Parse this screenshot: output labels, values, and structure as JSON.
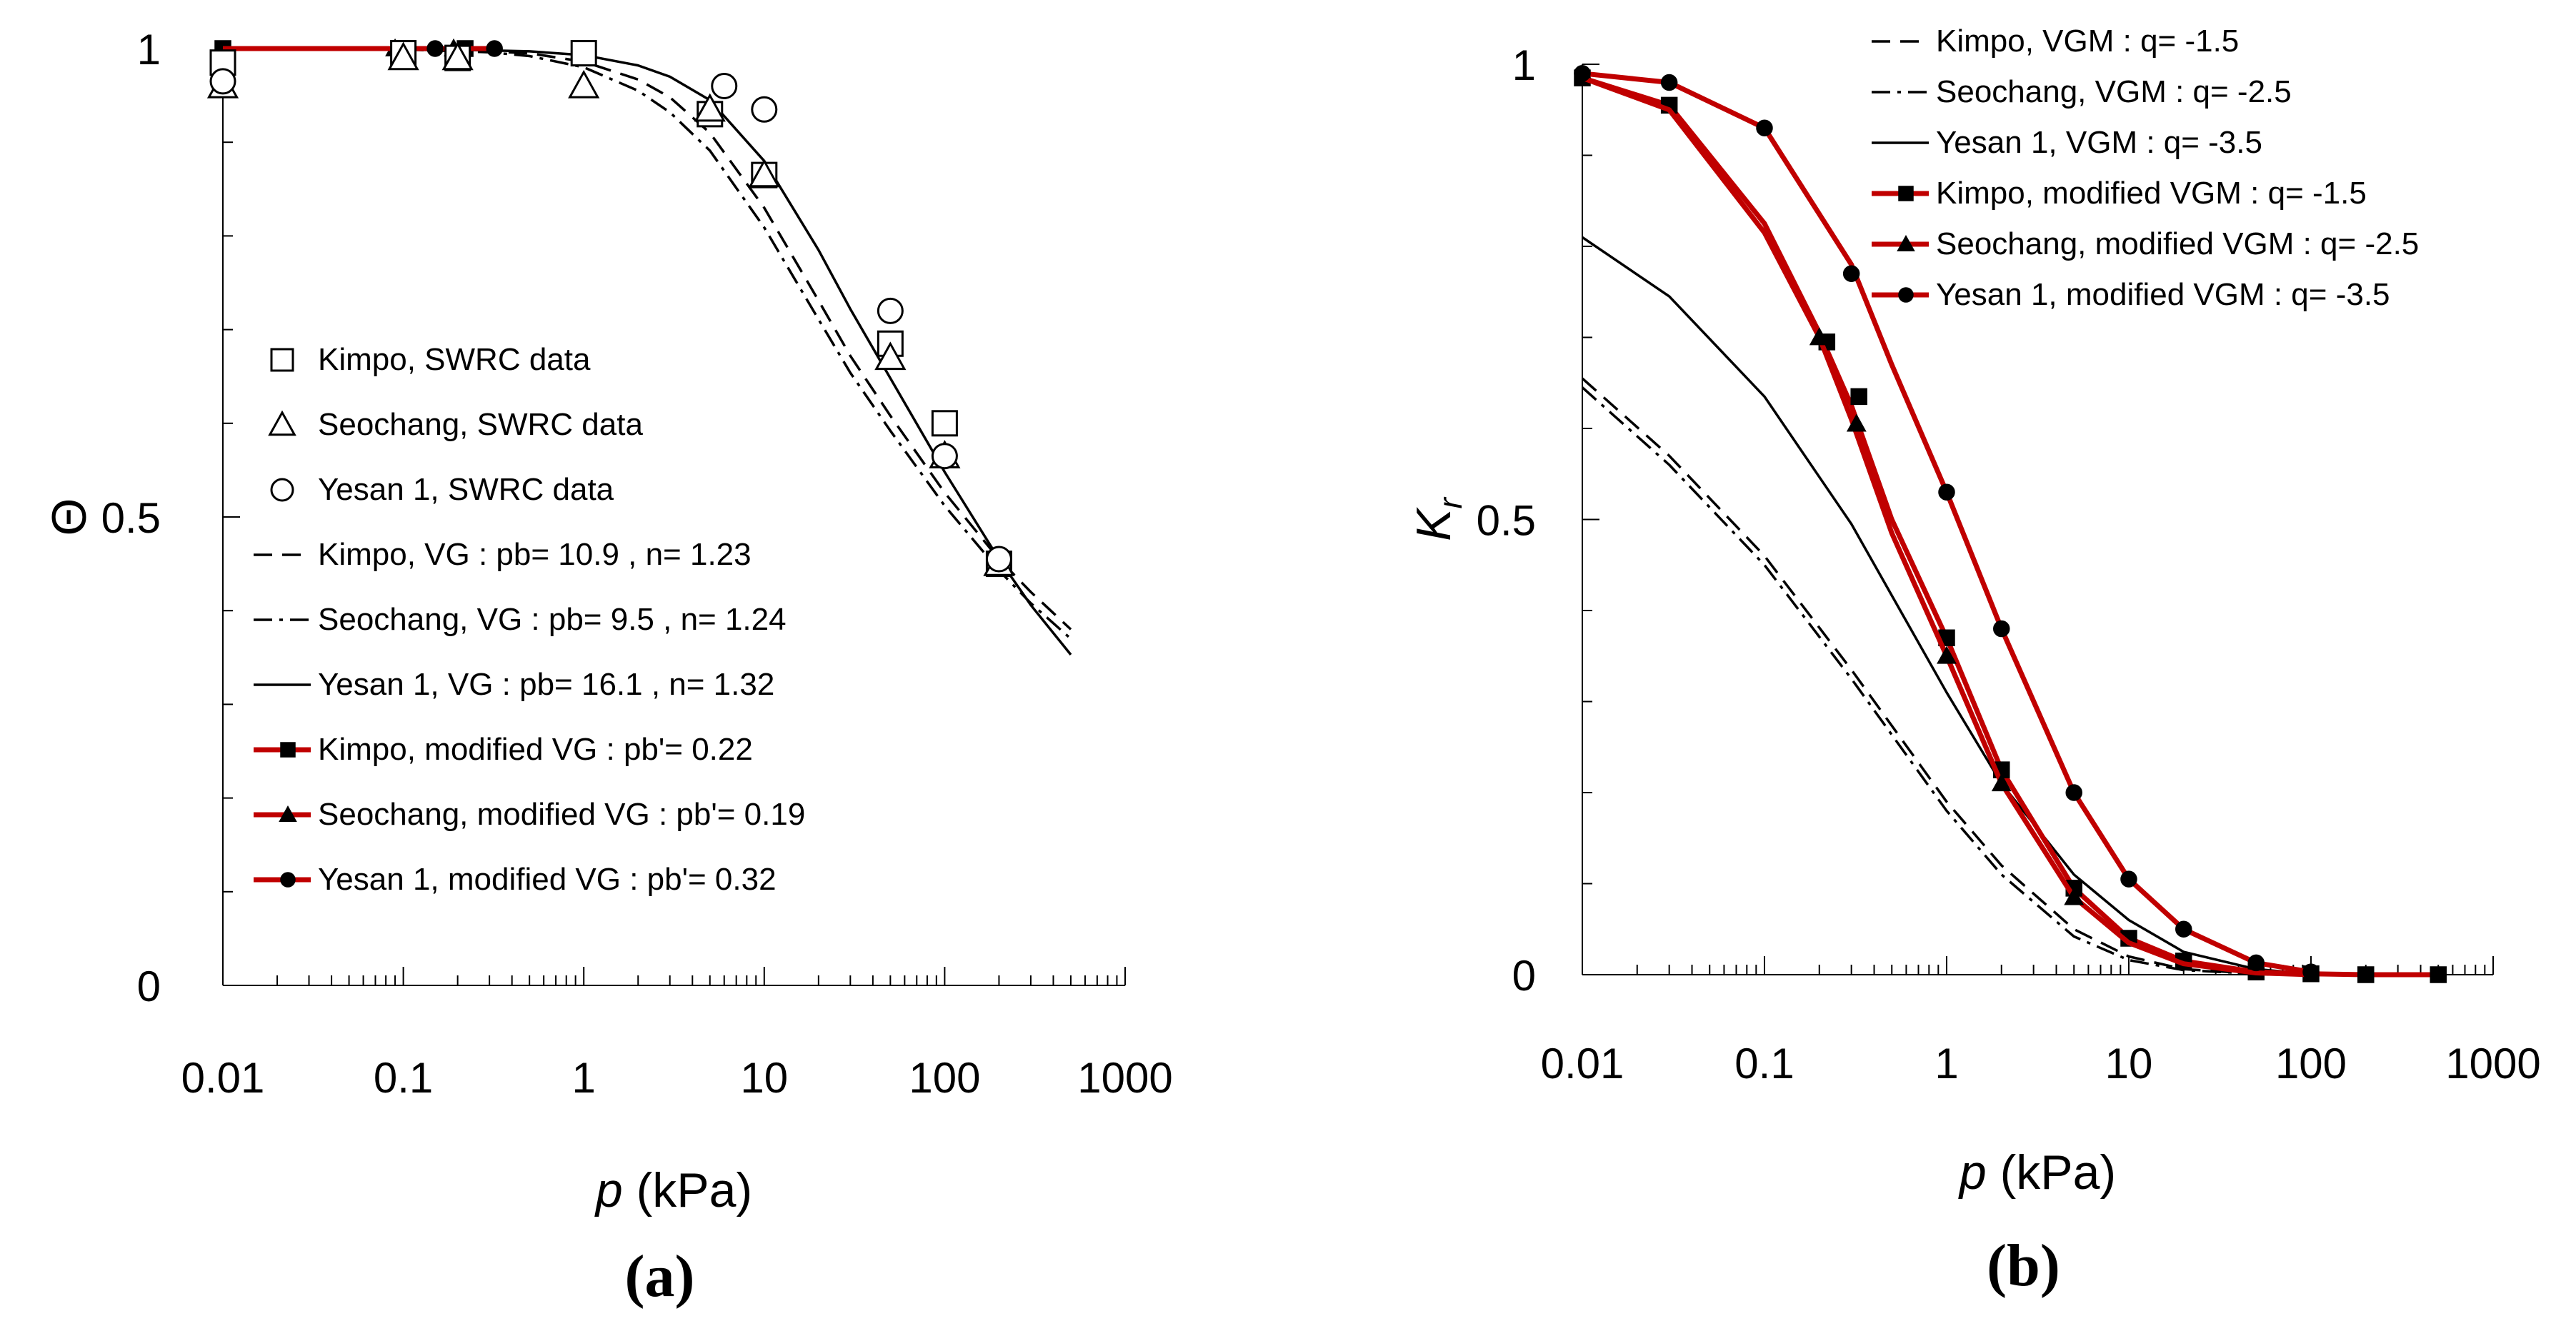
{
  "colors": {
    "red": "#c00000",
    "black": "#000000"
  },
  "chart_data": [
    {
      "type": "line",
      "panel": "(a)",
      "xlabel_italic": "p",
      "xlabel_unit": " (kPa)",
      "ylabel": "Θ",
      "xscale": "log",
      "xlim": [
        0.01,
        1000
      ],
      "ylim": [
        0,
        1
      ],
      "xticks": [
        {
          "value": 0.01,
          "label": "0.01"
        },
        {
          "value": 0.1,
          "label": "0.1"
        },
        {
          "value": 1,
          "label": "1"
        },
        {
          "value": 10,
          "label": "10"
        },
        {
          "value": 100,
          "label": "100"
        },
        {
          "value": 1000,
          "label": "1000"
        }
      ],
      "yticks": [
        {
          "value": 0,
          "label": "0"
        },
        {
          "value": 0.5,
          "label": "0.5"
        },
        {
          "value": 1,
          "label": "1"
        }
      ],
      "legend_position": "left",
      "scatter": [
        {
          "name": "Kimpo, SWRC data",
          "marker": "square",
          "x": [
            0.01,
            0.1,
            0.2,
            1,
            5,
            10,
            50,
            100,
            200
          ],
          "y": [
            0.985,
            0.995,
            0.99,
            0.995,
            0.93,
            0.865,
            0.685,
            0.6,
            0.45
          ]
        },
        {
          "name": "Seochang, SWRC data",
          "marker": "triangle",
          "x": [
            0.01,
            0.1,
            0.2,
            1,
            5,
            10,
            50,
            100,
            200
          ],
          "y": [
            0.96,
            0.99,
            0.99,
            0.96,
            0.935,
            0.865,
            0.67,
            0.565,
            0.45
          ]
        },
        {
          "name": "Yesan 1, SWRC data",
          "marker": "circle",
          "x": [
            0.01,
            6,
            10,
            50,
            100,
            200
          ],
          "y": [
            0.965,
            0.96,
            0.935,
            0.72,
            0.565,
            0.455
          ]
        }
      ],
      "series": [
        {
          "name": "Kimpo, VG : pb= 10.9 , n= 1.23",
          "style": "dashed",
          "color": "#000000",
          "x": [
            0.01,
            0.1,
            0.3,
            0.5,
            1,
            2,
            3,
            5,
            10,
            20,
            30,
            50,
            100,
            200,
            300,
            500
          ],
          "y": [
            1.0,
            0.999,
            0.997,
            0.995,
            0.986,
            0.967,
            0.948,
            0.91,
            0.83,
            0.731,
            0.672,
            0.608,
            0.526,
            0.455,
            0.42,
            0.38
          ]
        },
        {
          "name": "Seochang, VG : pb= 9.5 , n= 1.24",
          "style": "dashdot",
          "color": "#000000",
          "x": [
            0.01,
            0.1,
            0.3,
            0.5,
            1,
            2,
            3,
            5,
            10,
            20,
            30,
            50,
            100,
            200,
            300,
            500
          ],
          "y": [
            1.0,
            0.999,
            0.996,
            0.992,
            0.98,
            0.955,
            0.932,
            0.891,
            0.809,
            0.711,
            0.654,
            0.592,
            0.512,
            0.443,
            0.408,
            0.37
          ]
        },
        {
          "name": "Yesan 1, VG : pb= 16.1 , n= 1.32",
          "style": "solid",
          "color": "#000000",
          "x": [
            0.01,
            0.1,
            0.3,
            0.5,
            1,
            2,
            3,
            5,
            10,
            20,
            30,
            50,
            100,
            200,
            300,
            500
          ],
          "y": [
            1.0,
            1.0,
            0.998,
            0.997,
            0.993,
            0.982,
            0.97,
            0.945,
            0.88,
            0.785,
            0.722,
            0.648,
            0.548,
            0.455,
            0.406,
            0.353
          ]
        },
        {
          "name": "Kimpo, modified VG : pb'= 0.22",
          "style": "solid",
          "color": "#c00000",
          "marker": "square",
          "x": [
            0.01,
            0.22
          ],
          "y": [
            1.0,
            1.0
          ],
          "marker_x": [
            0.01,
            0.22
          ],
          "marker_y": [
            1.0,
            1.0
          ]
        },
        {
          "name": "Seochang, modified VG : pb'= 0.19",
          "style": "solid",
          "color": "#c00000",
          "marker": "triangle",
          "x": [
            0.01,
            0.19
          ],
          "y": [
            1.0,
            1.0
          ],
          "marker_x": [
            0.09,
            0.19
          ],
          "marker_y": [
            1.0,
            1.0
          ]
        },
        {
          "name": "Yesan 1, modified VG : pb'= 0.32",
          "style": "solid",
          "color": "#c00000",
          "marker": "circle",
          "x": [
            0.01,
            0.32
          ],
          "y": [
            1.0,
            1.0
          ],
          "marker_x": [
            0.15,
            0.32
          ],
          "marker_y": [
            1.0,
            1.0
          ]
        }
      ]
    },
    {
      "type": "line",
      "panel": "(b)",
      "xlabel_italic": "p",
      "xlabel_unit": " (kPa)",
      "ylabel": "K",
      "ylabel_sub": "r",
      "xscale": "log",
      "xlim": [
        0.01,
        1000
      ],
      "ylim": [
        0,
        1
      ],
      "xticks": [
        {
          "value": 0.01,
          "label": "0.01"
        },
        {
          "value": 0.1,
          "label": "0.1"
        },
        {
          "value": 1,
          "label": "1"
        },
        {
          "value": 10,
          "label": "10"
        },
        {
          "value": 100,
          "label": "100"
        },
        {
          "value": 1000,
          "label": "1000"
        }
      ],
      "yticks": [
        {
          "value": 0,
          "label": "0"
        },
        {
          "value": 0.5,
          "label": "0.5"
        },
        {
          "value": 1,
          "label": "1"
        }
      ],
      "legend_position": "top-right",
      "scatter": [],
      "series": [
        {
          "name": "Kimpo, VGM : q= -1.5",
          "style": "dashed",
          "color": "#000000",
          "x": [
            0.01,
            0.03,
            0.1,
            0.3,
            1,
            2,
            5,
            10,
            20,
            50,
            100
          ],
          "y": [
            0.655,
            0.57,
            0.46,
            0.335,
            0.19,
            0.12,
            0.05,
            0.02,
            0.006,
            0.001,
            0.0
          ]
        },
        {
          "name": "Seochang, VGM : q= -2.5",
          "style": "dashdot",
          "color": "#000000",
          "x": [
            0.01,
            0.03,
            0.1,
            0.3,
            1,
            2,
            5,
            10,
            20,
            50,
            100
          ],
          "y": [
            0.645,
            0.56,
            0.45,
            0.325,
            0.18,
            0.11,
            0.042,
            0.016,
            0.005,
            0.001,
            0.0
          ]
        },
        {
          "name": "Yesan 1, VGM : q= -3.5",
          "style": "solid",
          "color": "#000000",
          "x": [
            0.01,
            0.03,
            0.1,
            0.3,
            1,
            2,
            5,
            10,
            20,
            50,
            100
          ],
          "y": [
            0.81,
            0.745,
            0.635,
            0.495,
            0.31,
            0.21,
            0.11,
            0.06,
            0.025,
            0.006,
            0.001
          ]
        },
        {
          "name": "Kimpo, modified VGM : q= -1.5",
          "style": "solid",
          "color": "#c00000",
          "marker": "square",
          "x": [
            0.01,
            0.03,
            0.1,
            0.2,
            0.3,
            0.5,
            1,
            2,
            5,
            10,
            20,
            50,
            100,
            200,
            500
          ],
          "y": [
            0.985,
            0.955,
            0.825,
            0.705,
            0.625,
            0.5,
            0.37,
            0.225,
            0.095,
            0.04,
            0.015,
            0.003,
            0.001,
            0.0,
            0.0
          ],
          "marker_x": [
            0.01,
            0.03,
            0.22,
            0.33,
            1,
            2,
            5,
            10,
            20,
            50,
            100,
            200,
            500
          ],
          "marker_y": [
            0.985,
            0.955,
            0.695,
            0.635,
            0.37,
            0.225,
            0.095,
            0.04,
            0.015,
            0.003,
            0.001,
            0.0,
            0.0
          ]
        },
        {
          "name": "Seochang, modified VGM : q= -2.5",
          "style": "solid",
          "color": "#c00000",
          "marker": "triangle",
          "x": [
            0.01,
            0.03,
            0.1,
            0.2,
            0.3,
            0.5,
            1,
            2,
            5,
            10,
            20,
            50,
            100
          ],
          "y": [
            0.985,
            0.95,
            0.815,
            0.7,
            0.61,
            0.485,
            0.35,
            0.21,
            0.085,
            0.035,
            0.012,
            0.002,
            0.0
          ],
          "marker_x": [
            0.2,
            0.32,
            1,
            2,
            5
          ],
          "marker_y": [
            0.7,
            0.605,
            0.35,
            0.21,
            0.085
          ]
        },
        {
          "name": "Yesan 1, modified VGM : q= -3.5",
          "style": "solid",
          "color": "#c00000",
          "marker": "circle",
          "x": [
            0.01,
            0.03,
            0.1,
            0.3,
            0.5,
            1,
            2,
            5,
            10,
            20,
            50,
            100
          ],
          "y": [
            0.99,
            0.98,
            0.93,
            0.78,
            0.67,
            0.53,
            0.38,
            0.2,
            0.105,
            0.05,
            0.013,
            0.003
          ],
          "marker_x": [
            0.01,
            0.03,
            0.1,
            0.3,
            1,
            2,
            5,
            10,
            20,
            50,
            100
          ],
          "marker_y": [
            0.99,
            0.98,
            0.93,
            0.77,
            0.53,
            0.38,
            0.2,
            0.105,
            0.05,
            0.013,
            0.003
          ]
        }
      ]
    }
  ]
}
